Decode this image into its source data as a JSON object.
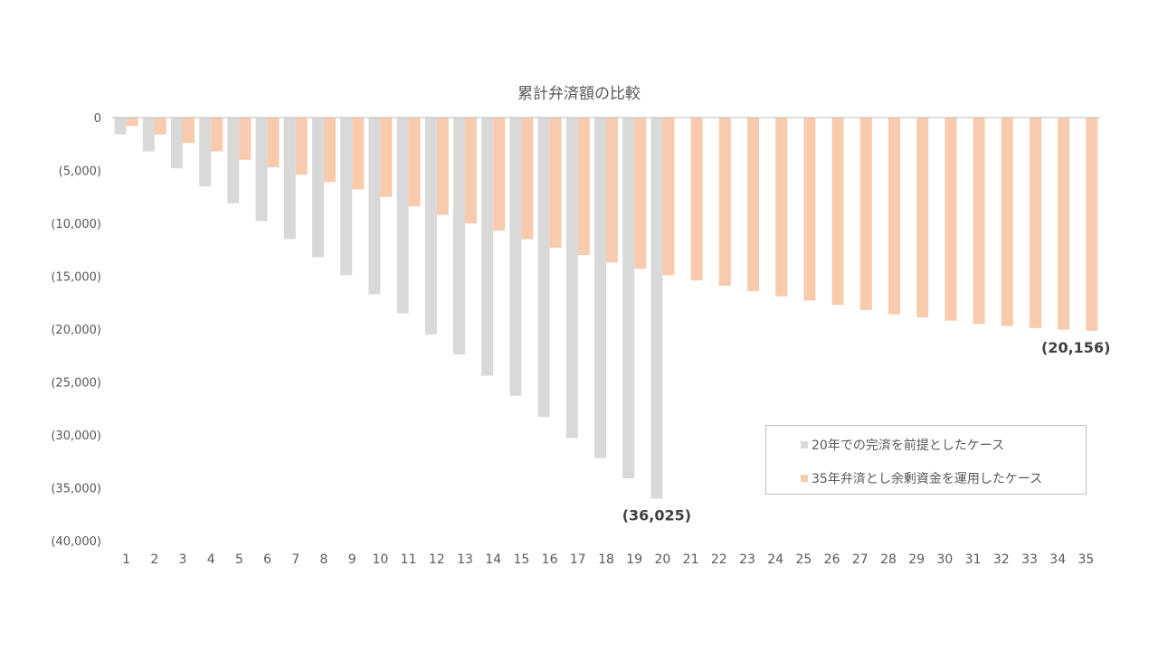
{
  "chart_data": {
    "type": "bar",
    "title": "累計弁済額の比較",
    "xlabel": "",
    "ylabel": "",
    "ylim": [
      -40000,
      0
    ],
    "yticks": [
      0,
      -5000,
      -10000,
      -15000,
      -20000,
      -25000,
      -30000,
      -35000,
      -40000
    ],
    "ytick_labels": [
      "0",
      "(5,000)",
      "(10,000)",
      "(15,000)",
      "(20,000)",
      "(25,000)",
      "(30,000)",
      "(35,000)",
      "(40,000)"
    ],
    "categories": [
      "1",
      "2",
      "3",
      "4",
      "5",
      "6",
      "7",
      "8",
      "9",
      "10",
      "11",
      "12",
      "13",
      "14",
      "15",
      "16",
      "17",
      "18",
      "19",
      "20",
      "21",
      "22",
      "23",
      "24",
      "25",
      "26",
      "27",
      "28",
      "29",
      "30",
      "31",
      "32",
      "33",
      "34",
      "35"
    ],
    "series": [
      {
        "name": "20年での完済を前提としたケース",
        "color": "#d9d9d9",
        "values": [
          -1600,
          -3200,
          -4800,
          -6500,
          -8100,
          -9800,
          -11500,
          -13200,
          -14900,
          -16700,
          -18500,
          -20500,
          -22400,
          -24400,
          -26300,
          -28300,
          -30300,
          -32200,
          -34100,
          -36025,
          null,
          null,
          null,
          null,
          null,
          null,
          null,
          null,
          null,
          null,
          null,
          null,
          null,
          null,
          null
        ]
      },
      {
        "name": "35年弁済とし余剰資金を運用したケース",
        "color": "#f8cbad",
        "values": [
          -800,
          -1600,
          -2400,
          -3200,
          -4000,
          -4700,
          -5400,
          -6100,
          -6800,
          -7500,
          -8400,
          -9200,
          -10000,
          -10700,
          -11500,
          -12300,
          -13000,
          -13700,
          -14300,
          -14900,
          -15400,
          -15900,
          -16400,
          -16900,
          -17300,
          -17700,
          -18200,
          -18600,
          -18900,
          -19200,
          -19500,
          -19700,
          -19900,
          -20050,
          -20156
        ]
      }
    ],
    "annotations": [
      {
        "text": "(36,025)",
        "series": 0,
        "category": "20"
      },
      {
        "text": "(20,156)",
        "series": 1,
        "category": "35"
      }
    ],
    "legend": "bottom-right, inside plot",
    "grid": false
  }
}
